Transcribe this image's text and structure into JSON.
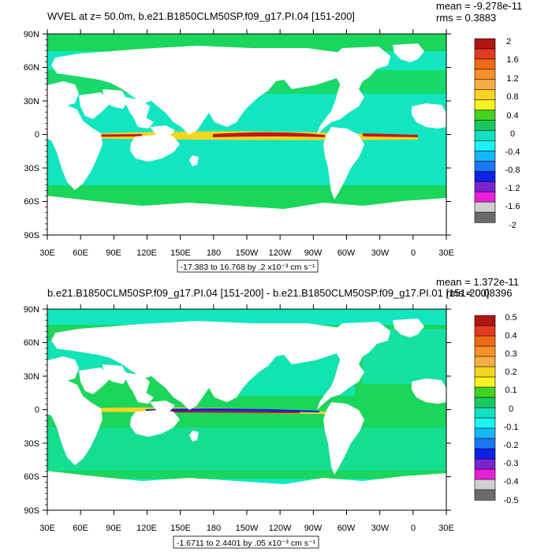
{
  "panels": [
    {
      "title": "WVEL at z=  50.0m, b.e21.B1850CLM50SP.f09_g17.PI.04 [151-200]",
      "stats": [
        "mean = -9.278e-11",
        "rms = 0.3883"
      ],
      "range_note": "-17.383 to 16.768 by .2 x10⁻³ cm s⁻¹",
      "colorbar_labels": [
        "2",
        "1.6",
        "1.2",
        "0.8",
        "0.4",
        "0",
        "-0.4",
        "-0.8",
        "-1.2",
        "-1.6",
        "-2"
      ]
    },
    {
      "title": "b.e21.B1850CLM50SP.f09_g17.PI.04 [151-200] - b.e21.B1850CLM50SP.f09_g17.PI.01 [151-200]",
      "stats": [
        "mean = 1.372e-11",
        "rms = 0.08396"
      ],
      "range_note": "-1.6711 to 2.4401 by .05 x10⁻³ cm s⁻¹",
      "colorbar_labels": [
        "0.5",
        "0.4",
        "0.3",
        "0.2",
        "0.1",
        "0",
        "-0.1",
        "-0.2",
        "-0.3",
        "-0.4",
        "-0.5"
      ]
    }
  ],
  "axes": {
    "lat_labels": [
      "90N",
      "60N",
      "30N",
      "0",
      "30S",
      "60S",
      "90S"
    ],
    "lon_labels": [
      "30E",
      "60E",
      "90E",
      "120E",
      "150E",
      "180",
      "150W",
      "120W",
      "90W",
      "60W",
      "30W",
      "0",
      "30E"
    ]
  },
  "colors": {
    "colorbar": [
      "#b01515",
      "#e33a20",
      "#f06a14",
      "#f7902b",
      "#f8ad44",
      "#f4d521",
      "#f8f224",
      "#42d11c",
      "#16c95f",
      "#12e0c0",
      "#1cf4f4",
      "#14b8f8",
      "#1a78f6",
      "#0c22e6",
      "#7a24d0",
      "#e820d8",
      "#cfcfcf",
      "#6b6b6b"
    ],
    "ocean_bg": "#12e6c0",
    "ocean_band": "#1ad65a",
    "equator_hot": "#c0181c",
    "land": "#ffffff"
  }
}
